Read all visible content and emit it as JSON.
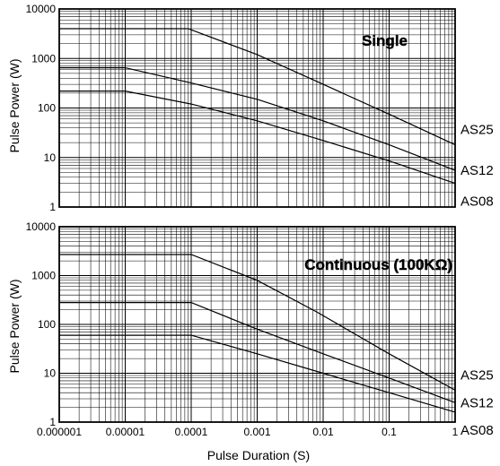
{
  "chart_data": [
    {
      "type": "line",
      "title": "Single",
      "ylabel": "Pulse Power (W)",
      "xlabel": "",
      "x_scale": "log",
      "y_scale": "log",
      "xlim": [
        1e-06,
        1
      ],
      "ylim": [
        1,
        10000
      ],
      "x_ticks": [
        "0.000001",
        "0.00001",
        "0.0001",
        "0.001",
        "0.01",
        "0.1",
        "1"
      ],
      "y_ticks": [
        "1",
        "10",
        "100",
        "1000",
        "10000"
      ],
      "grid": true,
      "series": [
        {
          "name": "AS25",
          "points": [
            [
              1e-06,
              4000
            ],
            [
              9e-05,
              4000
            ],
            [
              0.001,
              1200
            ],
            [
              0.01,
              300
            ],
            [
              0.1,
              75
            ],
            [
              1,
              18
            ]
          ]
        },
        {
          "name": "AS12",
          "points": [
            [
              1e-06,
              650
            ],
            [
              1e-05,
              650
            ],
            [
              0.0001,
              320
            ],
            [
              0.001,
              150
            ],
            [
              0.01,
              55
            ],
            [
              0.1,
              18
            ],
            [
              1,
              5.5
            ]
          ]
        },
        {
          "name": "AS08",
          "points": [
            [
              1e-06,
              220
            ],
            [
              1e-05,
              220
            ],
            [
              0.0001,
              120
            ],
            [
              0.001,
              55
            ],
            [
              0.01,
              22
            ],
            [
              0.1,
              8.5
            ],
            [
              1,
              3
            ]
          ]
        }
      ]
    },
    {
      "type": "line",
      "title": "Continuous (100KΩ)",
      "ylabel": "Pulse Power (W)",
      "xlabel": "Pulse Duration (S)",
      "x_scale": "log",
      "y_scale": "log",
      "xlim": [
        1e-06,
        1
      ],
      "ylim": [
        1,
        10000
      ],
      "x_ticks": [
        "0.000001",
        "0.00001",
        "0.0001",
        "0.001",
        "0.01",
        "0.1",
        "1"
      ],
      "y_ticks": [
        "1",
        "10",
        "100",
        "1000",
        "10000"
      ],
      "grid": true,
      "series": [
        {
          "name": "AS25",
          "points": [
            [
              1e-06,
              2700
            ],
            [
              0.0001,
              2700
            ],
            [
              0.001,
              800
            ],
            [
              0.008,
              180
            ],
            [
              0.1,
              25
            ],
            [
              1,
              4.5
            ]
          ]
        },
        {
          "name": "AS12",
          "points": [
            [
              1e-06,
              280
            ],
            [
              0.0001,
              280
            ],
            [
              0.001,
              80
            ],
            [
              0.01,
              25
            ],
            [
              0.1,
              8
            ],
            [
              1,
              2.5
            ]
          ]
        },
        {
          "name": "AS08",
          "points": [
            [
              1e-06,
              60
            ],
            [
              0.0001,
              60
            ],
            [
              0.001,
              25
            ],
            [
              0.01,
              10
            ],
            [
              0.1,
              4
            ],
            [
              1,
              1.6
            ]
          ]
        }
      ]
    }
  ]
}
